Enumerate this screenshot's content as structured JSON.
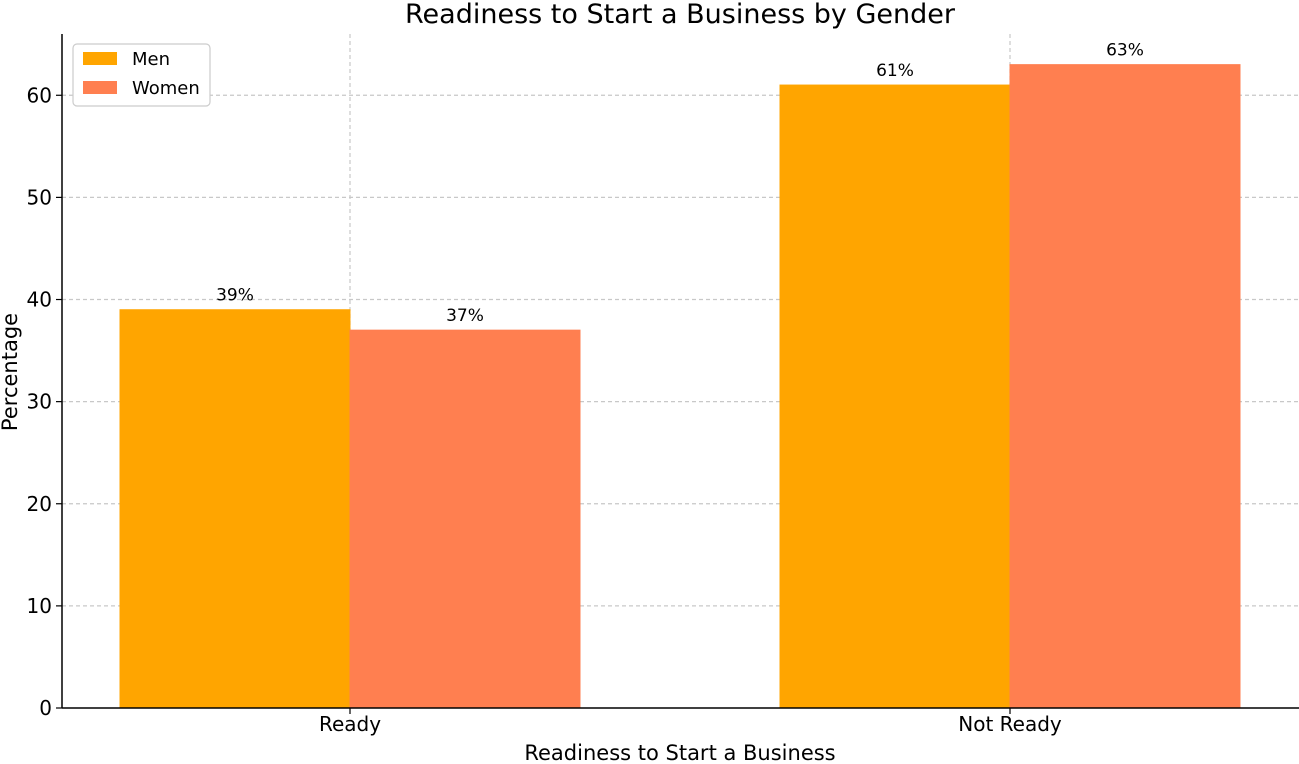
{
  "chart_data": {
    "type": "bar",
    "title": "Readiness to Start a Business by Gender",
    "xlabel": "Readiness to Start a Business",
    "ylabel": "Percentage",
    "categories": [
      "Ready",
      "Not Ready"
    ],
    "series": [
      {
        "name": "Men",
        "values": [
          39,
          61
        ],
        "labels": [
          "39%",
          "61%"
        ],
        "color": "#FFA500"
      },
      {
        "name": "Women",
        "values": [
          37,
          63
        ],
        "labels": [
          "37%",
          "63%"
        ],
        "color": "#FF7F50"
      }
    ],
    "ylim": [
      0,
      66
    ],
    "yticks": [
      0,
      10,
      20,
      30,
      40,
      50,
      60
    ],
    "grid": true,
    "legend_position": "top-left"
  }
}
